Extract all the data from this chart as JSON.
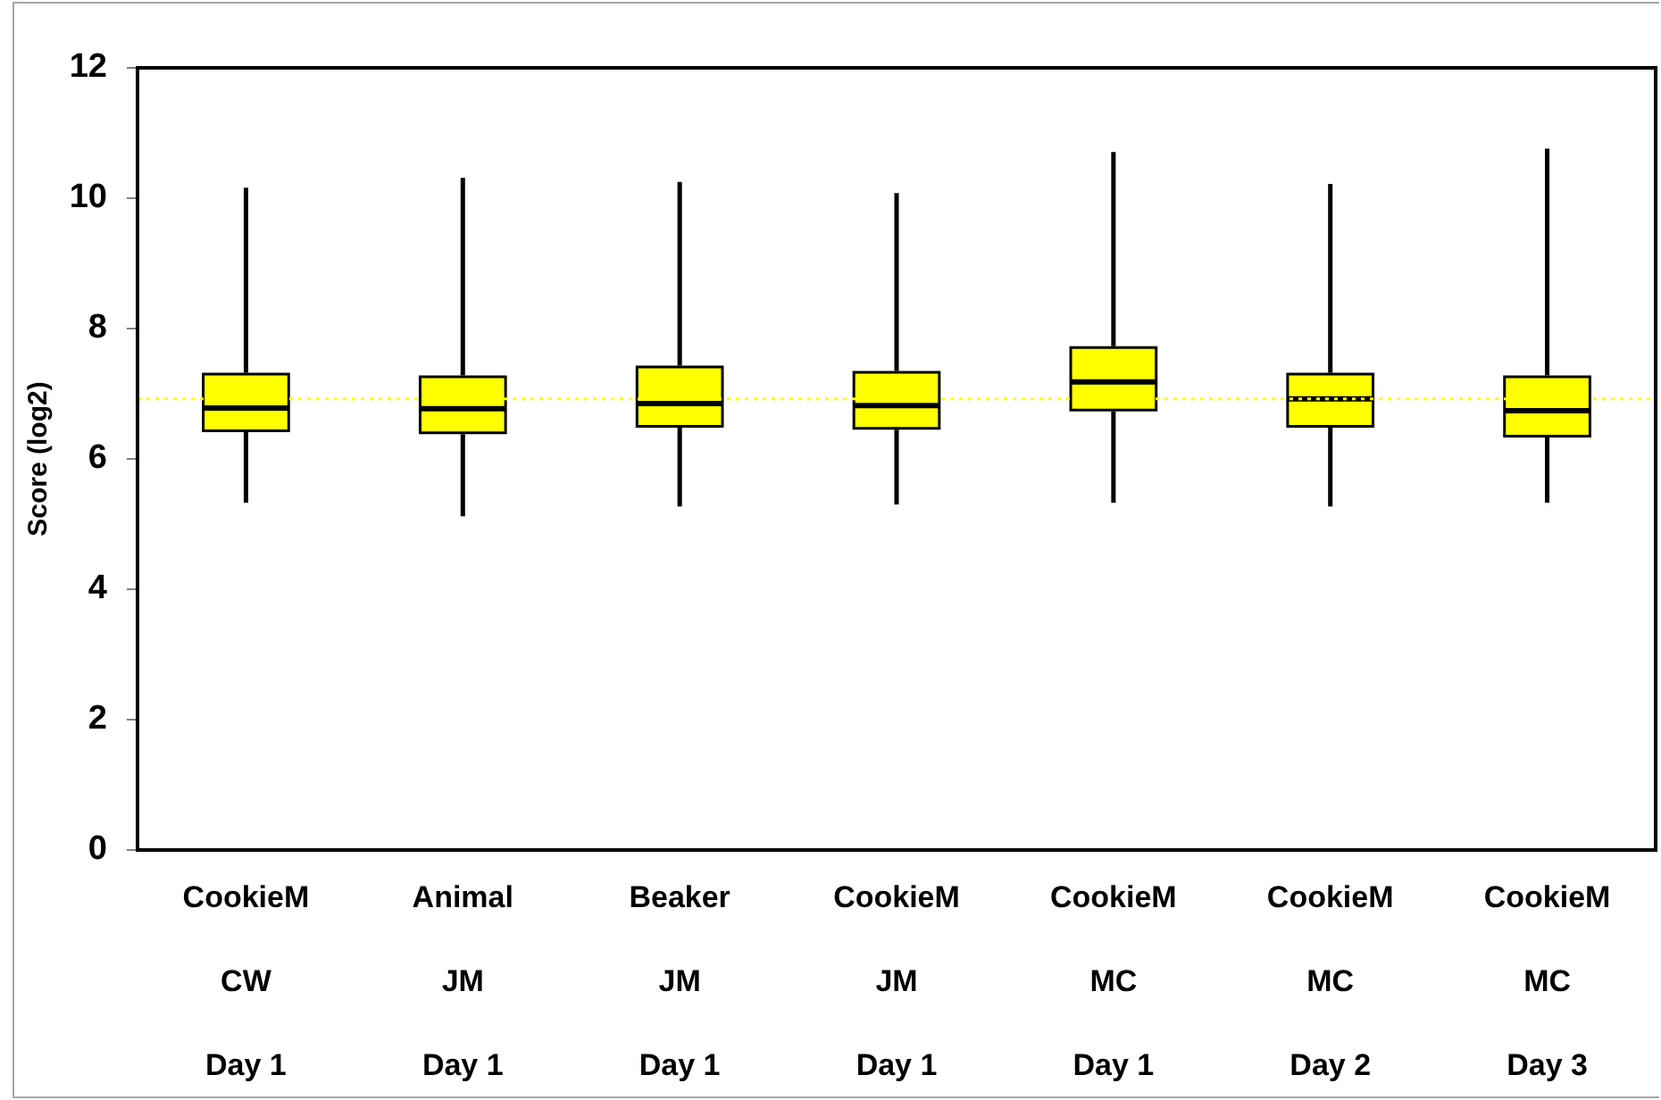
{
  "chart_data": {
    "type": "box",
    "ylabel": "Score (log2)",
    "categories": [
      "CookieM\nCW\nDay 1",
      "Animal\nJM\nDay 1",
      "Beaker\nJM\nDay 1",
      "CookieM\nJM\nDay 1",
      "CookieM\nMC\nDay 1",
      "CookieM\nMC\nDay 2",
      "CookieM\nMC\nDay 3"
    ],
    "series": [
      {
        "color": "#ffff00",
        "boxes": [
          {
            "low": 5.33,
            "q1": 6.43,
            "median": 6.78,
            "q3": 7.3,
            "high": 10.16
          },
          {
            "low": 5.12,
            "q1": 6.4,
            "median": 6.77,
            "q3": 7.26,
            "high": 10.31
          },
          {
            "low": 5.27,
            "q1": 6.5,
            "median": 6.85,
            "q3": 7.41,
            "high": 10.25
          },
          {
            "low": 5.3,
            "q1": 6.47,
            "median": 6.82,
            "q3": 7.33,
            "high": 10.08
          },
          {
            "low": 5.33,
            "q1": 6.75,
            "median": 7.18,
            "q3": 7.71,
            "high": 10.71
          },
          {
            "low": 5.27,
            "q1": 6.5,
            "median": 6.92,
            "q3": 7.3,
            "high": 10.22
          },
          {
            "low": 5.33,
            "q1": 6.35,
            "median": 6.74,
            "q3": 7.26,
            "high": 10.76
          }
        ]
      }
    ],
    "ylim": [
      0,
      12
    ],
    "yticks": [
      0,
      2,
      4,
      6,
      8,
      10,
      12
    ],
    "ref_lines": [
      {
        "axis": "y",
        "value": 6.92,
        "color": "#ffff00",
        "line_style": "dotted"
      }
    ],
    "grid": false,
    "legend": false
  }
}
